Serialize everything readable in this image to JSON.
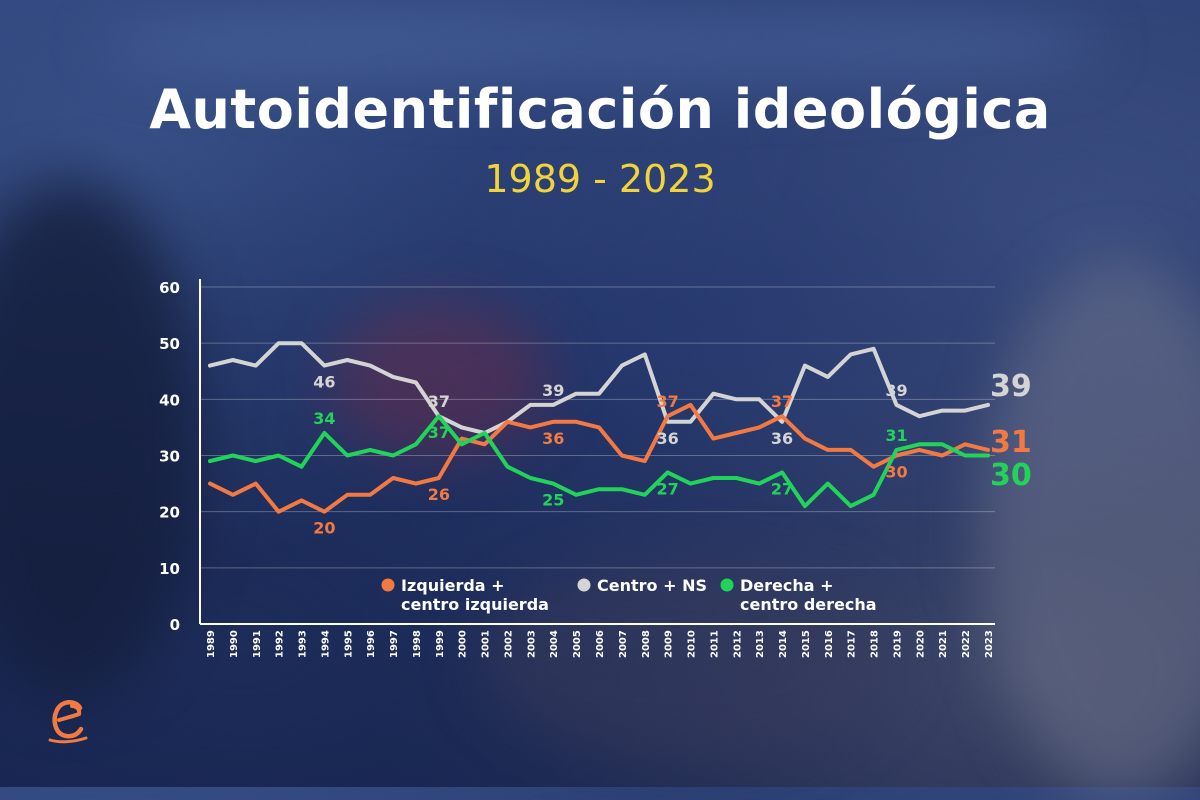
{
  "header": {
    "title": "Autoidentificación ideológica",
    "subtitle": "1989 - 2023"
  },
  "colors": {
    "izquierda": "#f27a42",
    "centro": "#d4d4d4",
    "derecha": "#22d35a",
    "title": "#ffffff",
    "subtitle": "#f2d33a"
  },
  "chart_data": {
    "type": "line",
    "title": "Autoidentificación ideológica",
    "subtitle": "1989 - 2023",
    "xlabel": "",
    "ylabel": "",
    "ylim": [
      0,
      60
    ],
    "yticks": [
      0,
      10,
      20,
      30,
      40,
      50,
      60
    ],
    "grid": true,
    "legend_position": "bottom-center",
    "x": [
      "1989",
      "1990",
      "1991",
      "1992",
      "1993",
      "1994",
      "1995",
      "1996",
      "1997",
      "1998",
      "1999",
      "2000",
      "2001",
      "2002",
      "2003",
      "2004",
      "2005",
      "2006",
      "2007",
      "2008",
      "2009",
      "2010",
      "2011",
      "2012",
      "2013",
      "2014",
      "2015",
      "2016",
      "2017",
      "2018",
      "2019",
      "2020",
      "2021",
      "2022",
      "2023"
    ],
    "series": [
      {
        "name": "Izquierda + centro izquierda",
        "color_key": "izquierda",
        "values": [
          25,
          23,
          25,
          20,
          22,
          20,
          23,
          23,
          26,
          25,
          26,
          33,
          32,
          36,
          35,
          36,
          36,
          35,
          30,
          29,
          37,
          39,
          33,
          34,
          35,
          37,
          33,
          31,
          31,
          28,
          30,
          31,
          30,
          32,
          31
        ],
        "labels": [
          {
            "x": "1994",
            "text": "20",
            "pos": "below"
          },
          {
            "x": "1999",
            "text": "26",
            "pos": "below"
          },
          {
            "x": "2004",
            "text": "36",
            "pos": "below"
          },
          {
            "x": "2009",
            "text": "37",
            "pos": "above"
          },
          {
            "x": "2014",
            "text": "37",
            "pos": "above"
          },
          {
            "x": "2019",
            "text": "30",
            "pos": "below"
          }
        ],
        "end_label": "31"
      },
      {
        "name": "Centro + NS",
        "color_key": "centro",
        "values": [
          46,
          47,
          46,
          50,
          50,
          46,
          47,
          46,
          44,
          43,
          37,
          35,
          34,
          36,
          39,
          39,
          41,
          41,
          46,
          48,
          36,
          36,
          41,
          40,
          40,
          36,
          46,
          44,
          48,
          49,
          39,
          37,
          38,
          38,
          39
        ],
        "labels": [
          {
            "x": "1994",
            "text": "46",
            "pos": "below"
          },
          {
            "x": "1999",
            "text": "37",
            "pos": "above"
          },
          {
            "x": "2004",
            "text": "39",
            "pos": "above"
          },
          {
            "x": "2009",
            "text": "36",
            "pos": "below"
          },
          {
            "x": "2014",
            "text": "36",
            "pos": "below"
          },
          {
            "x": "2019",
            "text": "39",
            "pos": "above"
          }
        ],
        "end_label": "39"
      },
      {
        "name": "Derecha + centro derecha",
        "color_key": "derecha",
        "values": [
          29,
          30,
          29,
          30,
          28,
          34,
          30,
          31,
          30,
          32,
          37,
          32,
          34,
          28,
          26,
          25,
          23,
          24,
          24,
          23,
          27,
          25,
          26,
          26,
          25,
          27,
          21,
          25,
          21,
          23,
          31,
          32,
          32,
          30,
          30
        ],
        "labels": [
          {
            "x": "1994",
            "text": "34",
            "pos": "above"
          },
          {
            "x": "1999",
            "text": "37",
            "pos": "below"
          },
          {
            "x": "2004",
            "text": "25",
            "pos": "below"
          },
          {
            "x": "2009",
            "text": "27",
            "pos": "below"
          },
          {
            "x": "2014",
            "text": "27",
            "pos": "below"
          },
          {
            "x": "2019",
            "text": "31",
            "pos": "above"
          }
        ],
        "end_label": "30"
      }
    ],
    "legend": [
      {
        "line1": "Izquierda +",
        "line2": "centro izquierda",
        "color_key": "izquierda"
      },
      {
        "line1": "Centro + NS",
        "line2": "",
        "color_key": "centro"
      },
      {
        "line1": "Derecha +",
        "line2": "centro derecha",
        "color_key": "derecha"
      }
    ]
  },
  "logo": {
    "icon": "e-logo-icon"
  }
}
